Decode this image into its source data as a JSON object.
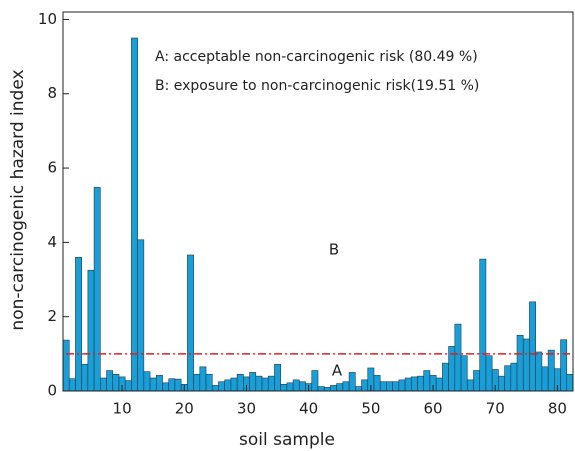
{
  "chart_data": {
    "type": "bar",
    "x_label": "soil sample",
    "y_label": "non-carcinogenic hazard index",
    "annotations": [
      "A: acceptable non-carcinogenic risk (80.49 %)",
      "B: exposure to non-carcinogenic risk(19.51 %)",
      "A",
      "B"
    ],
    "color": "#1a9ed6",
    "threshold": 1,
    "threshold_color": "#e0201b",
    "x": [
      1,
      2,
      3,
      4,
      5,
      6,
      7,
      8,
      9,
      10,
      11,
      12,
      13,
      14,
      15,
      16,
      17,
      18,
      19,
      20,
      21,
      22,
      23,
      24,
      25,
      26,
      27,
      28,
      29,
      30,
      31,
      32,
      33,
      34,
      35,
      36,
      37,
      38,
      39,
      40,
      41,
      42,
      43,
      44,
      45,
      46,
      47,
      48,
      49,
      50,
      51,
      52,
      53,
      54,
      55,
      56,
      57,
      58,
      59,
      60,
      61,
      62,
      63,
      64,
      65,
      66,
      67,
      68,
      69,
      70,
      71,
      72,
      73,
      74,
      75,
      76,
      77,
      78,
      79,
      80,
      81,
      82
    ],
    "values": [
      1.37,
      0.33,
      3.6,
      0.72,
      3.25,
      5.48,
      0.35,
      0.55,
      0.45,
      0.38,
      0.28,
      9.5,
      4.07,
      0.52,
      0.35,
      0.42,
      0.22,
      0.33,
      0.32,
      0.18,
      3.66,
      0.45,
      0.65,
      0.45,
      0.15,
      0.25,
      0.3,
      0.35,
      0.45,
      0.38,
      0.5,
      0.4,
      0.35,
      0.4,
      0.72,
      0.18,
      0.22,
      0.3,
      0.25,
      0.2,
      0.55,
      0.12,
      0.1,
      0.15,
      0.2,
      0.25,
      0.5,
      0.12,
      0.3,
      0.62,
      0.42,
      0.25,
      0.25,
      0.25,
      0.3,
      0.35,
      0.38,
      0.4,
      0.55,
      0.42,
      0.35,
      0.75,
      1.2,
      1.8,
      0.95,
      0.3,
      0.55,
      3.55,
      0.95,
      0.58,
      0.4,
      0.68,
      0.75,
      1.5,
      1.4,
      2.4,
      1.05,
      0.65,
      1.1,
      0.6,
      1.38,
      0.45
    ],
    "xlim": [
      0.5,
      82.5
    ],
    "xticks": [
      10,
      20,
      30,
      40,
      50,
      60,
      70,
      80
    ],
    "ylim": [
      0,
      10.2
    ],
    "yticks": [
      0,
      2,
      4,
      6,
      8,
      10
    ]
  }
}
